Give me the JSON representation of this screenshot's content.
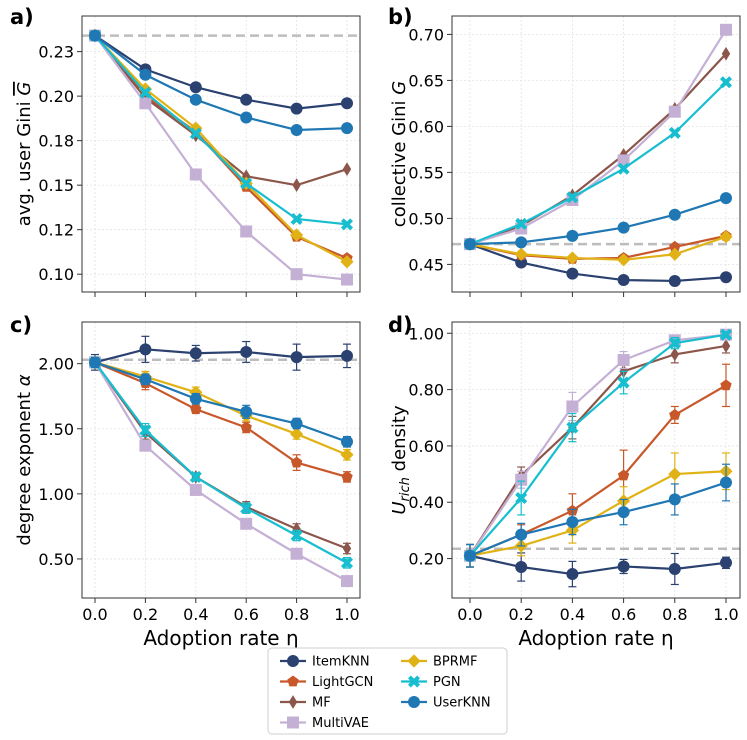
{
  "x_label": "Adoption rate η",
  "series_styles": {
    "ItemKNN": {
      "color": "#2b4170",
      "marker": "circle"
    },
    "LightGCN": {
      "color": "#c8582a",
      "marker": "pentagon"
    },
    "MF": {
      "color": "#8c564b",
      "marker": "diamond-thin"
    },
    "MultiVAE": {
      "color": "#c5b0d5",
      "marker": "square"
    },
    "BPRMF": {
      "color": "#e0b216",
      "marker": "diamond"
    },
    "PGN": {
      "color": "#17becf",
      "marker": "x"
    },
    "UserKNN": {
      "color": "#1f77b4",
      "marker": "circle"
    }
  },
  "legend": {
    "entries": [
      "ItemKNN",
      "LightGCN",
      "MF",
      "MultiVAE",
      "BPRMF",
      "PGN",
      "UserKNN"
    ],
    "placement": "bottom-center"
  },
  "chart_data": [
    {
      "panel": "a)",
      "type": "line",
      "x": [
        0.0,
        0.2,
        0.4,
        0.6,
        0.8,
        1.0
      ],
      "x_ticks": [
        "0.0",
        "0.2",
        "0.4",
        "0.6",
        "0.8",
        "1.0"
      ],
      "ylabel": "avg. user Gini G̅",
      "ylim": [
        0.09,
        0.245
      ],
      "y_ticks": [
        0.1,
        0.125,
        0.15,
        0.175,
        0.2,
        0.225
      ],
      "y_tick_labels": [
        "0.10",
        "0.12",
        "0.15",
        "0.18",
        "0.20",
        "0.23"
      ],
      "reference_line": 0.234,
      "series": [
        {
          "name": "ItemKNN",
          "values": [
            0.234,
            0.215,
            0.205,
            0.198,
            0.193,
            0.196
          ]
        },
        {
          "name": "LightGCN",
          "values": [
            0.234,
            0.2,
            0.18,
            0.149,
            0.121,
            0.109
          ]
        },
        {
          "name": "MF",
          "values": [
            0.234,
            0.199,
            0.178,
            0.155,
            0.15,
            0.159
          ]
        },
        {
          "name": "MultiVAE",
          "values": [
            0.234,
            0.196,
            0.156,
            0.124,
            0.1,
            0.097
          ]
        },
        {
          "name": "BPRMF",
          "values": [
            0.234,
            0.204,
            0.182,
            0.151,
            0.122,
            0.107
          ]
        },
        {
          "name": "PGN",
          "values": [
            0.234,
            0.202,
            0.179,
            0.151,
            0.131,
            0.128
          ]
        },
        {
          "name": "UserKNN",
          "values": [
            0.234,
            0.212,
            0.198,
            0.188,
            0.181,
            0.182
          ]
        }
      ]
    },
    {
      "panel": "b)",
      "type": "line",
      "x": [
        0.0,
        0.2,
        0.4,
        0.6,
        0.8,
        1.0
      ],
      "x_ticks": [
        "0.0",
        "0.2",
        "0.4",
        "0.6",
        "0.8",
        "1.0"
      ],
      "ylabel": "collective Gini G",
      "ylim": [
        0.42,
        0.72
      ],
      "y_ticks": [
        0.45,
        0.5,
        0.55,
        0.6,
        0.65,
        0.7
      ],
      "y_tick_labels": [
        "0.45",
        "0.50",
        "0.55",
        "0.60",
        "0.65",
        "0.70"
      ],
      "reference_line": 0.472,
      "series": [
        {
          "name": "ItemKNN",
          "values": [
            0.472,
            0.452,
            0.44,
            0.433,
            0.432,
            0.436
          ]
        },
        {
          "name": "LightGCN",
          "values": [
            0.472,
            0.46,
            0.456,
            0.457,
            0.469,
            0.481
          ]
        },
        {
          "name": "MF",
          "values": [
            0.472,
            0.492,
            0.525,
            0.569,
            0.619,
            0.679
          ]
        },
        {
          "name": "MultiVAE",
          "values": [
            0.472,
            0.489,
            0.52,
            0.563,
            0.616,
            0.705
          ]
        },
        {
          "name": "BPRMF",
          "values": [
            0.472,
            0.461,
            0.457,
            0.455,
            0.461,
            0.48
          ]
        },
        {
          "name": "PGN",
          "values": [
            0.472,
            0.494,
            0.523,
            0.554,
            0.593,
            0.648
          ]
        },
        {
          "name": "UserKNN",
          "values": [
            0.472,
            0.474,
            0.481,
            0.49,
            0.504,
            0.522
          ]
        }
      ]
    },
    {
      "panel": "c)",
      "type": "line",
      "x": [
        0.0,
        0.2,
        0.4,
        0.6,
        0.8,
        1.0
      ],
      "x_ticks": [
        "0.0",
        "0.2",
        "0.4",
        "0.6",
        "0.8",
        "1.0"
      ],
      "ylabel": "degree exponent α",
      "ylim": [
        0.2,
        2.32
      ],
      "y_ticks": [
        0.5,
        1.0,
        1.5,
        2.0
      ],
      "y_tick_labels": [
        "0.50",
        "1.00",
        "1.50",
        "2.00"
      ],
      "reference_line": 2.03,
      "series": [
        {
          "name": "ItemKNN",
          "values": [
            2.01,
            2.11,
            2.08,
            2.09,
            2.05,
            2.06
          ],
          "errors": [
            0.06,
            0.1,
            0.06,
            0.08,
            0.1,
            0.09
          ]
        },
        {
          "name": "LightGCN",
          "values": [
            2.01,
            1.85,
            1.65,
            1.51,
            1.24,
            1.13
          ],
          "errors": [
            0.04,
            0.05,
            0.03,
            0.04,
            0.06,
            0.04
          ]
        },
        {
          "name": "MF",
          "values": [
            2.01,
            1.47,
            1.13,
            0.9,
            0.73,
            0.58
          ],
          "errors": [
            0.04,
            0.05,
            0.03,
            0.04,
            0.04,
            0.04
          ]
        },
        {
          "name": "MultiVAE",
          "values": [
            2.01,
            1.37,
            1.03,
            0.77,
            0.54,
            0.33
          ],
          "errors": [
            0.03,
            0.04,
            0.03,
            0.03,
            0.03,
            0.03
          ]
        },
        {
          "name": "BPRMF",
          "values": [
            2.01,
            1.9,
            1.78,
            1.6,
            1.46,
            1.3
          ],
          "errors": [
            0.04,
            0.04,
            0.04,
            0.04,
            0.04,
            0.04
          ]
        },
        {
          "name": "PGN",
          "values": [
            2.01,
            1.49,
            1.13,
            0.89,
            0.68,
            0.47
          ],
          "errors": [
            0.04,
            0.05,
            0.03,
            0.04,
            0.04,
            0.04
          ]
        },
        {
          "name": "UserKNN",
          "values": [
            2.01,
            1.88,
            1.73,
            1.63,
            1.54,
            1.4
          ],
          "errors": [
            0.04,
            0.04,
            0.04,
            0.05,
            0.04,
            0.04
          ]
        }
      ]
    },
    {
      "panel": "d)",
      "type": "line",
      "x": [
        0.0,
        0.2,
        0.4,
        0.6,
        0.8,
        1.0
      ],
      "x_ticks": [
        "0.0",
        "0.2",
        "0.4",
        "0.6",
        "0.8",
        "1.0"
      ],
      "ylabel": "U_rich density",
      "ylim": [
        0.06,
        1.04
      ],
      "y_ticks": [
        0.2,
        0.4,
        0.6,
        0.8,
        1.0
      ],
      "y_tick_labels": [
        "0.20",
        "0.40",
        "0.60",
        "0.80",
        "1.00"
      ],
      "reference_line": 0.235,
      "series": [
        {
          "name": "ItemKNN",
          "values": [
            0.21,
            0.17,
            0.145,
            0.172,
            0.163,
            0.185
          ],
          "errors": [
            0.04,
            0.05,
            0.045,
            0.025,
            0.055,
            0.02
          ]
        },
        {
          "name": "LightGCN",
          "values": [
            0.21,
            0.285,
            0.37,
            0.495,
            0.71,
            0.815
          ],
          "errors": [
            0.04,
            0.035,
            0.06,
            0.09,
            0.03,
            0.075
          ]
        },
        {
          "name": "MF",
          "values": [
            0.21,
            0.495,
            0.665,
            0.865,
            0.925,
            0.955
          ],
          "errors": [
            0.04,
            0.03,
            0.04,
            0.045,
            0.03,
            0.025
          ]
        },
        {
          "name": "MultiVAE",
          "values": [
            0.21,
            0.48,
            0.74,
            0.905,
            0.975,
            0.995
          ],
          "errors": [
            0.04,
            0.03,
            0.05,
            0.03,
            0.015,
            0.01
          ]
        },
        {
          "name": "BPRMF",
          "values": [
            0.21,
            0.245,
            0.3,
            0.405,
            0.5,
            0.51
          ],
          "errors": [
            0.04,
            0.035,
            0.045,
            0.05,
            0.075,
            0.065
          ]
        },
        {
          "name": "PGN",
          "values": [
            0.21,
            0.415,
            0.665,
            0.825,
            0.965,
            0.995
          ],
          "errors": [
            0.04,
            0.06,
            0.05,
            0.04,
            0.02,
            0.01
          ]
        },
        {
          "name": "UserKNN",
          "values": [
            0.21,
            0.285,
            0.33,
            0.365,
            0.41,
            0.47
          ],
          "errors": [
            0.04,
            0.04,
            0.045,
            0.045,
            0.055,
            0.065
          ]
        }
      ]
    }
  ]
}
